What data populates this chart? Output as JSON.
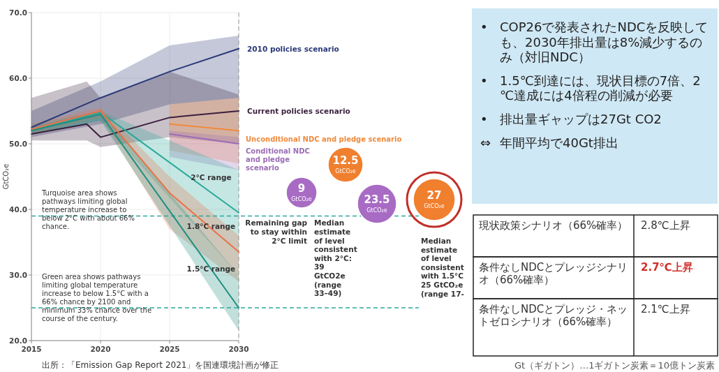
{
  "chart_data": [
    {
      "type": "line",
      "ylabel": "GtCO₂e",
      "xlim": [
        2015,
        2030
      ],
      "xticks": [
        2015,
        2020,
        2025,
        2030
      ],
      "ylim": [
        20,
        70
      ],
      "yticks": [
        {
          "value": 20,
          "label": "20.0"
        },
        {
          "value": 30,
          "label": "30.0"
        },
        {
          "value": 40,
          "label": "40.0"
        },
        {
          "value": 50,
          "label": "50.0"
        },
        {
          "value": 60,
          "label": "60.0"
        },
        {
          "value": 70,
          "label": "70.0"
        }
      ],
      "grid": true,
      "line_style": "solid",
      "series": [
        {
          "name": "2010 policies scenario",
          "color": "#2b3a78",
          "x": [
            2015,
            2020,
            2025,
            2030
          ],
          "values": [
            52.5,
            57,
            61,
            64.5
          ],
          "lower": [
            51,
            53,
            56,
            57
          ],
          "upper": [
            55,
            59.5,
            65,
            66.5
          ]
        },
        {
          "name": "Current policies scenario",
          "color": "#3a1f3d",
          "x": [
            2015,
            2019,
            2020,
            2025,
            2030
          ],
          "values": [
            51.5,
            53,
            51,
            54,
            55
          ],
          "lower": [
            50.5,
            50.5,
            49.5,
            51,
            50
          ],
          "upper": [
            57,
            59.5,
            57,
            61,
            57.5
          ]
        },
        {
          "name": "Unconditional NDC and pledge scenario",
          "color": "#f08a3c",
          "x": [
            2025,
            2030
          ],
          "values": [
            53,
            52
          ],
          "lower": [
            49,
            47
          ],
          "upper": [
            56,
            57
          ]
        },
        {
          "name": "Conditional NDC and pledge scenario",
          "color": "#9b6cb6",
          "x": [
            2025,
            2030
          ],
          "values": [
            51.5,
            50
          ],
          "lower": [
            48,
            46
          ],
          "upper": [
            52,
            51
          ]
        },
        {
          "color": "#2aa89a",
          "x": [
            2015,
            2020,
            2030
          ],
          "values": [
            52,
            54.8,
            39.5
          ],
          "lower": [
            51.5,
            53.5,
            30
          ],
          "upper": [
            53,
            55,
            46
          ]
        },
        {
          "color": "#e8734a",
          "x": [
            2015,
            2020,
            2025,
            2030
          ],
          "values": [
            52.2,
            55,
            42.5,
            33.5
          ],
          "lower": [
            51.5,
            54,
            37,
            29
          ],
          "upper": [
            53,
            55.5,
            45,
            36
          ]
        },
        {
          "color": "#1f8f80",
          "x": [
            2015,
            2020,
            2030
          ],
          "values": [
            52,
            54.5,
            25
          ],
          "lower": [
            51.5,
            53.5,
            21.5
          ],
          "upper": [
            52.5,
            55,
            30
          ]
        }
      ],
      "ref_lines": [
        {
          "axis": "y",
          "value": 39,
          "label": "Median estimate of level consistent with 2°C: 39 GtCO2e (range 33–49)",
          "color": "#2aa89a",
          "line_style": "dashed"
        },
        {
          "axis": "y",
          "value": 25,
          "label": "Median estimate of level consistent with 1.5°C 25 GtCO₂e (range 17-",
          "color": "#2aa89a",
          "line_style": "dashed"
        },
        {
          "axis": "x",
          "value": 2030,
          "color": "#999999",
          "line_style": "dashed"
        }
      ],
      "annotations": [
        "Turquoise area shows pathways limiting global temperature increase to below 2°C with about 66% chance.",
        "Green area shows pathways limiting global temperature increase to below 1.5°C with a 66% chance by 2100 and minimum 33% chance over the course of the century.",
        "Remaining gap to stay within 2°C limit",
        "9 GtCO₂e",
        "12.5 GtCO₂e",
        "23.5 GtCO₂e",
        "27 GtCO₂e",
        "出所：「Emission Gap Report 2021」を国連環境計画が修正",
        "2°C range",
        "1.8°C range",
        "1.5°C range"
      ]
    },
    {
      "type": "other",
      "annotations": [
        "• COP26で発表されたNDCを反映しても、2030年排出量は8%減少するのみ（対旧NDC）",
        "• 1.5℃到達には、現状目標の7倍、2℃達成には4倍程の削減が必要",
        "• 排出量ギャップは27Gt CO2",
        "⇔ 年間平均で40Gt排出"
      ]
    },
    {
      "type": "other",
      "annotations": [
        "現状政策シナリオ（66%確率）",
        "2.8℃上昇",
        "条件なしNDCとプレッジシナリオ（66%確率）",
        "2.7℃上昇",
        "条件なしNDCとプレッジ・ネットゼロシナリオ（66%確率）",
        "2.1℃上昇",
        "Gt（ギガトン）…1ギガトン炭素＝10億トン炭素"
      ]
    }
  ]
}
